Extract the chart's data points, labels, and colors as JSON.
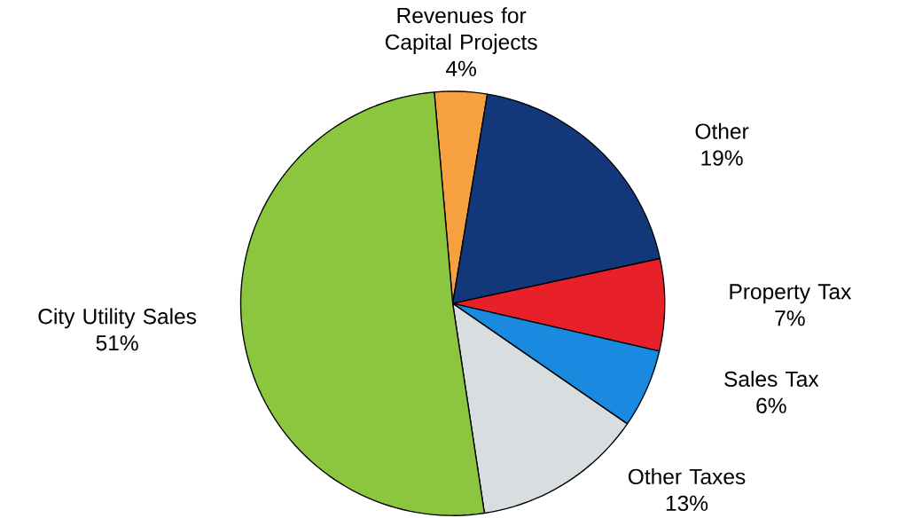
{
  "chart_data": {
    "type": "pie",
    "categories": [
      "Revenues for Capital Projects",
      "Other",
      "Property Tax",
      "Sales Tax",
      "Other Taxes",
      "City Utility Sales"
    ],
    "values": [
      4,
      19,
      7,
      6,
      13,
      51
    ],
    "value_labels": [
      "4%",
      "19%",
      "7%",
      "6%",
      "13%",
      "51%"
    ],
    "colors": [
      "#f7a040",
      "#13387a",
      "#e8202a",
      "#1a8ae0",
      "#d8dde0",
      "#8cc63f"
    ]
  }
}
